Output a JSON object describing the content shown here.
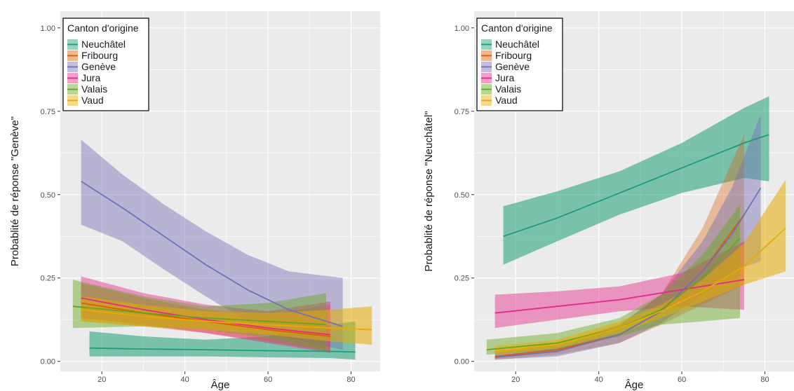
{
  "legend_title": "Canton d'origine",
  "series_names": [
    "Neuchâtel",
    "Fribourg",
    "Genève",
    "Jura",
    "Valais",
    "Vaud"
  ],
  "colors": {
    "Neuchâtel": "#1b9e77",
    "Fribourg": "#d95f02",
    "Genève": "#7570b3",
    "Jura": "#e7298a",
    "Valais": "#66a61e",
    "Vaud": "#e6ab02"
  },
  "panel_background": "#ebebeb",
  "chart_data": [
    {
      "type": "line",
      "xlabel": "Âge",
      "ylabel": "Probablité de réponse \"Genève\"",
      "xlim": [
        10,
        87
      ],
      "ylim": [
        -0.03,
        1.05
      ],
      "xticks": [
        20,
        40,
        60,
        80
      ],
      "yticks": [
        0.0,
        0.25,
        0.5,
        0.75,
        1.0
      ],
      "ytick_labels": [
        "0.00",
        "0.25",
        "0.50",
        "0.75",
        "1.00"
      ],
      "grid": true,
      "legend_position": "top-left",
      "series": [
        {
          "name": "Neuchâtel",
          "x": [
            17,
            30,
            45,
            60,
            75,
            81
          ],
          "y": [
            0.04,
            0.037,
            0.035,
            0.032,
            0.03,
            0.028
          ],
          "lower": [
            0.015,
            0.015,
            0.015,
            0.012,
            0.01,
            0.005
          ],
          "upper": [
            0.09,
            0.075,
            0.065,
            0.075,
            0.11,
            0.12
          ]
        },
        {
          "name": "Fribourg",
          "x": [
            15,
            30,
            45,
            60,
            75
          ],
          "y": [
            0.175,
            0.145,
            0.12,
            0.095,
            0.075
          ],
          "lower": [
            0.12,
            0.105,
            0.085,
            0.06,
            0.03
          ],
          "upper": [
            0.235,
            0.19,
            0.155,
            0.14,
            0.17
          ]
        },
        {
          "name": "Genève",
          "x": [
            15,
            25,
            35,
            45,
            55,
            65,
            78
          ],
          "y": [
            0.54,
            0.46,
            0.375,
            0.29,
            0.215,
            0.155,
            0.105
          ],
          "lower": [
            0.41,
            0.36,
            0.275,
            0.195,
            0.12,
            0.07,
            0.035
          ],
          "upper": [
            0.665,
            0.56,
            0.47,
            0.39,
            0.32,
            0.27,
            0.25
          ]
        },
        {
          "name": "Jura",
          "x": [
            15,
            30,
            45,
            60,
            75
          ],
          "y": [
            0.19,
            0.155,
            0.125,
            0.1,
            0.08
          ],
          "lower": [
            0.13,
            0.11,
            0.085,
            0.055,
            0.025
          ],
          "upper": [
            0.255,
            0.205,
            0.17,
            0.15,
            0.18
          ]
        },
        {
          "name": "Valais",
          "x": [
            13,
            30,
            45,
            60,
            74
          ],
          "y": [
            0.165,
            0.145,
            0.13,
            0.12,
            0.11
          ],
          "lower": [
            0.1,
            0.105,
            0.095,
            0.07,
            0.03
          ],
          "upper": [
            0.245,
            0.195,
            0.165,
            0.175,
            0.205
          ]
        },
        {
          "name": "Vaud",
          "x": [
            15,
            30,
            45,
            60,
            75,
            85
          ],
          "y": [
            0.155,
            0.135,
            0.12,
            0.11,
            0.1,
            0.095
          ],
          "lower": [
            0.12,
            0.105,
            0.095,
            0.08,
            0.06,
            0.05
          ],
          "upper": [
            0.195,
            0.17,
            0.15,
            0.145,
            0.155,
            0.165
          ]
        }
      ]
    },
    {
      "type": "line",
      "xlabel": "Âge",
      "ylabel": "Probablité de réponse \"Neuchâtel\"",
      "xlim": [
        10,
        87
      ],
      "ylim": [
        -0.03,
        1.05
      ],
      "xticks": [
        20,
        40,
        60,
        80
      ],
      "yticks": [
        0.0,
        0.25,
        0.5,
        0.75,
        1.0
      ],
      "ytick_labels": [
        "0.00",
        "0.25",
        "0.50",
        "0.75",
        "1.00"
      ],
      "grid": true,
      "legend_position": "top-left",
      "series": [
        {
          "name": "Neuchâtel",
          "x": [
            17,
            30,
            45,
            60,
            75,
            81
          ],
          "y": [
            0.375,
            0.43,
            0.505,
            0.58,
            0.655,
            0.68
          ],
          "lower": [
            0.29,
            0.36,
            0.44,
            0.505,
            0.55,
            0.54
          ],
          "upper": [
            0.465,
            0.51,
            0.57,
            0.655,
            0.76,
            0.795
          ]
        },
        {
          "name": "Fribourg",
          "x": [
            15,
            30,
            45,
            55,
            65,
            75
          ],
          "y": [
            0.015,
            0.035,
            0.08,
            0.15,
            0.27,
            0.44
          ],
          "lower": [
            0.005,
            0.02,
            0.055,
            0.11,
            0.17,
            0.23
          ],
          "upper": [
            0.03,
            0.055,
            0.11,
            0.2,
            0.4,
            0.68
          ]
        },
        {
          "name": "Genève",
          "x": [
            15,
            30,
            45,
            55,
            65,
            72,
            79
          ],
          "y": [
            0.012,
            0.03,
            0.08,
            0.15,
            0.27,
            0.38,
            0.52
          ],
          "lower": [
            0.005,
            0.015,
            0.055,
            0.115,
            0.2,
            0.27,
            0.3
          ],
          "upper": [
            0.025,
            0.05,
            0.11,
            0.2,
            0.36,
            0.52,
            0.74
          ]
        },
        {
          "name": "Jura",
          "x": [
            15,
            30,
            45,
            60,
            75
          ],
          "y": [
            0.145,
            0.165,
            0.185,
            0.215,
            0.245
          ],
          "lower": [
            0.1,
            0.125,
            0.15,
            0.165,
            0.155
          ],
          "upper": [
            0.2,
            0.21,
            0.225,
            0.265,
            0.36
          ]
        },
        {
          "name": "Valais",
          "x": [
            13,
            30,
            45,
            55,
            65,
            74
          ],
          "y": [
            0.035,
            0.055,
            0.1,
            0.155,
            0.25,
            0.37
          ],
          "lower": [
            0.02,
            0.035,
            0.075,
            0.11,
            0.12,
            0.13
          ],
          "upper": [
            0.065,
            0.085,
            0.13,
            0.2,
            0.32,
            0.47
          ]
        },
        {
          "name": "Vaud",
          "x": [
            15,
            30,
            45,
            55,
            65,
            75,
            85
          ],
          "y": [
            0.03,
            0.05,
            0.1,
            0.15,
            0.21,
            0.285,
            0.4
          ],
          "lower": [
            0.02,
            0.04,
            0.085,
            0.13,
            0.18,
            0.23,
            0.27
          ],
          "upper": [
            0.045,
            0.065,
            0.12,
            0.17,
            0.245,
            0.355,
            0.545
          ]
        }
      ]
    }
  ]
}
